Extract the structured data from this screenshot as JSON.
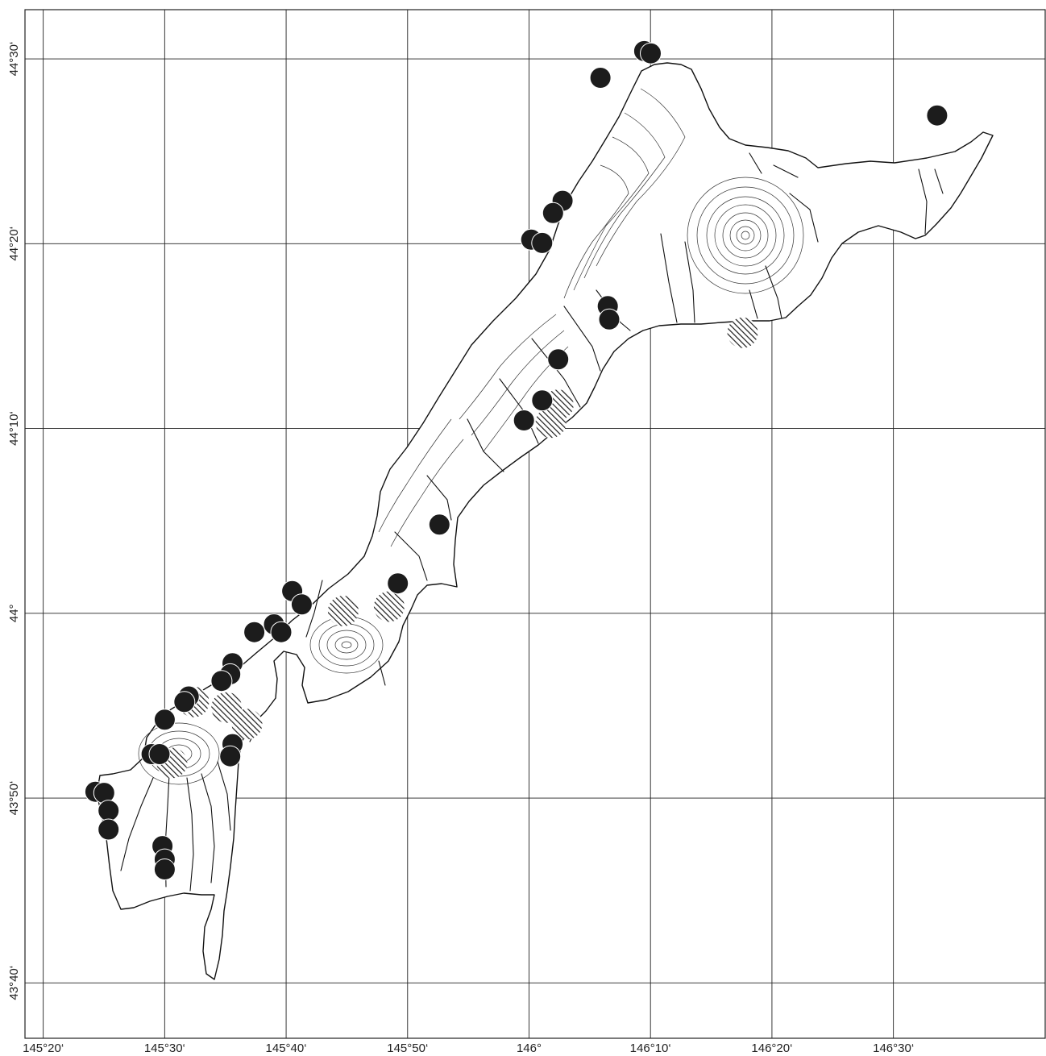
{
  "map": {
    "x_ticks": [
      "145°20‘",
      "145°30‘",
      "145°40‘",
      "145°50‘",
      "146°",
      "146°10‘",
      "146°20‘",
      "146°30‘"
    ],
    "y_ticks": [
      "44°30‘",
      "44°20‘",
      "44°10‘",
      "44°",
      "43°50‘",
      "43°40‘"
    ],
    "lon_range": [
      145.3083,
      146.7083
    ],
    "lat_range": [
      43.6167,
      44.5444
    ],
    "legend": [],
    "symbol_colors": {
      "solid": "#1c1c1c",
      "hatched": "#1c1c1c"
    }
  },
  "chart_data": {
    "type": "scatter",
    "title": "",
    "xlabel": "",
    "ylabel": "",
    "xlim": [
      "145°18.5‘",
      "146°42.5‘"
    ],
    "ylim": [
      "43°37‘",
      "44°32.7‘"
    ],
    "grid": true,
    "series": [
      {
        "symbol": "solid-circle",
        "points": [
          {
            "lon": 146.158,
            "lat": 44.507
          },
          {
            "lon": 146.167,
            "lat": 44.505
          },
          {
            "lon": 146.098,
            "lat": 44.483
          },
          {
            "lon": 146.56,
            "lat": 44.449
          },
          {
            "lon": 146.046,
            "lat": 44.372
          },
          {
            "lon": 146.033,
            "lat": 44.361
          },
          {
            "lon": 146.003,
            "lat": 44.337
          },
          {
            "lon": 146.018,
            "lat": 44.334
          },
          {
            "lon": 146.108,
            "lat": 44.277
          },
          {
            "lon": 146.11,
            "lat": 44.265
          },
          {
            "lon": 146.04,
            "lat": 44.229
          },
          {
            "lon": 146.018,
            "lat": 44.192
          },
          {
            "lon": 145.993,
            "lat": 44.174
          },
          {
            "lon": 145.877,
            "lat": 44.08
          },
          {
            "lon": 145.82,
            "lat": 44.027
          },
          {
            "lon": 145.675,
            "lat": 44.02
          },
          {
            "lon": 145.688,
            "lat": 44.008
          },
          {
            "lon": 145.65,
            "lat": 43.99
          },
          {
            "lon": 145.66,
            "lat": 43.983
          },
          {
            "lon": 145.623,
            "lat": 43.983
          },
          {
            "lon": 145.593,
            "lat": 43.955
          },
          {
            "lon": 145.59,
            "lat": 43.945
          },
          {
            "lon": 145.578,
            "lat": 43.939
          },
          {
            "lon": 145.533,
            "lat": 43.925
          },
          {
            "lon": 145.527,
            "lat": 43.92
          },
          {
            "lon": 145.5,
            "lat": 43.904
          },
          {
            "lon": 145.593,
            "lat": 43.882
          },
          {
            "lon": 145.59,
            "lat": 43.871
          },
          {
            "lon": 145.482,
            "lat": 43.873
          },
          {
            "lon": 145.493,
            "lat": 43.873
          },
          {
            "lon": 145.405,
            "lat": 43.839
          },
          {
            "lon": 145.417,
            "lat": 43.838
          },
          {
            "lon": 145.423,
            "lat": 43.822
          },
          {
            "lon": 145.423,
            "lat": 43.805
          },
          {
            "lon": 145.497,
            "lat": 43.79
          },
          {
            "lon": 145.5,
            "lat": 43.778
          },
          {
            "lon": 145.5,
            "lat": 43.769
          }
        ]
      },
      {
        "symbol": "hatched-circle",
        "points": [
          {
            "lon": 146.293,
            "lat": 44.253
          },
          {
            "lon": 146.04,
            "lat": 44.188
          },
          {
            "lon": 146.03,
            "lat": 44.172
          },
          {
            "lon": 145.745,
            "lat": 44.002
          },
          {
            "lon": 145.808,
            "lat": 44.006
          },
          {
            "lon": 145.613,
            "lat": 43.9
          },
          {
            "lon": 145.51,
            "lat": 43.865
          },
          {
            "lon": 145.585,
            "lat": 43.915
          },
          {
            "lon": 145.54,
            "lat": 43.92
          }
        ]
      }
    ]
  }
}
